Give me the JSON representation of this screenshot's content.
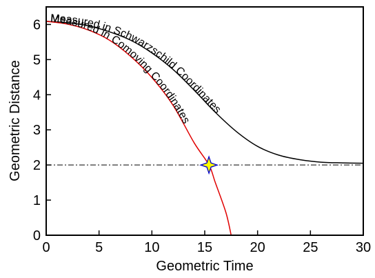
{
  "chart_data": {
    "type": "line",
    "xlabel": "Geometric Time",
    "ylabel": "Geometric Distance",
    "xlim": [
      0,
      30
    ],
    "ylim": [
      0,
      6.5
    ],
    "x_ticks": [
      "0",
      "5",
      "10",
      "15",
      "20",
      "25",
      "30"
    ],
    "y_ticks": [
      "0",
      "1",
      "2",
      "3",
      "4",
      "5",
      "6"
    ],
    "grid": false,
    "legend": "none",
    "series": [
      {
        "name": "Measured in Schwarzschild Coordinates",
        "color": "#000000",
        "x": [
          0,
          2,
          4,
          6,
          8,
          10,
          12,
          14,
          16,
          18,
          20,
          22,
          24,
          26,
          28,
          30
        ],
        "y": [
          6.09,
          6.05,
          5.96,
          5.79,
          5.55,
          5.19,
          4.72,
          4.13,
          3.5,
          2.95,
          2.53,
          2.28,
          2.15,
          2.08,
          2.06,
          2.05
        ]
      },
      {
        "name": "Measured in Comoving Coordinates",
        "color": "#e00000",
        "x": [
          0,
          2,
          4,
          6,
          8,
          10,
          12,
          14,
          15.4,
          16,
          17,
          17.5
        ],
        "y": [
          6.09,
          6.01,
          5.84,
          5.55,
          5.09,
          4.49,
          3.7,
          2.63,
          2.0,
          1.5,
          0.65,
          0.0
        ]
      },
      {
        "name": "",
        "color": "#000000",
        "style": "dash-dot",
        "x": [
          0,
          30
        ],
        "y": [
          2,
          2
        ]
      }
    ],
    "annotations": [
      {
        "text": "Measured in Schwarzschild Coordinates",
        "series": 0
      },
      {
        "text": "Measured in Comoving Coordinates",
        "series": 1
      }
    ],
    "marker": {
      "x": 15.4,
      "y": 2.0,
      "shape": "4-point star",
      "fill": "#ffff00",
      "stroke": "#0000cc"
    }
  }
}
